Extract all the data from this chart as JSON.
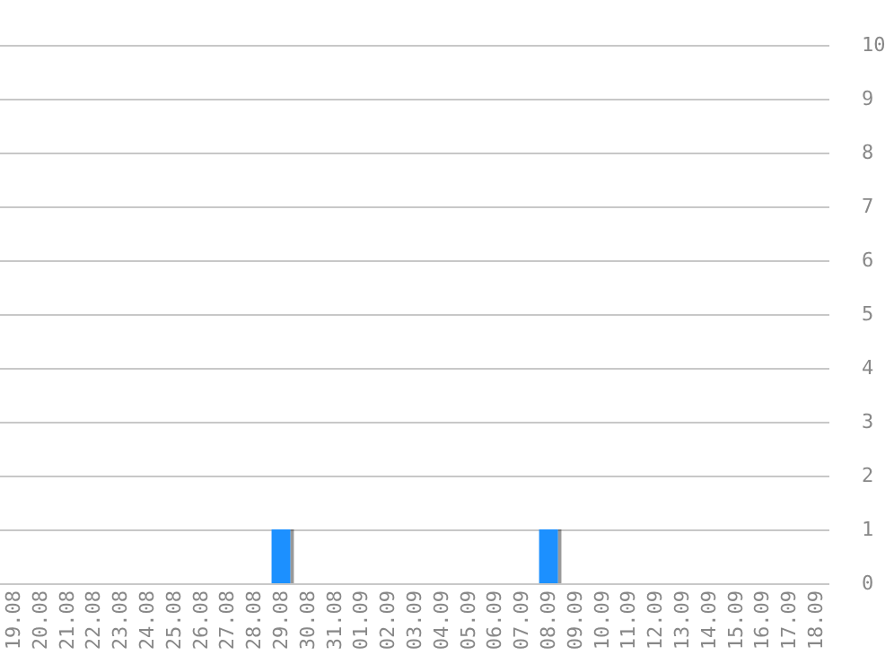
{
  "chart_data": {
    "type": "bar",
    "categories": [
      "19.08",
      "20.08",
      "21.08",
      "22.08",
      "23.08",
      "24.08",
      "25.08",
      "26.08",
      "27.08",
      "28.08",
      "29.08",
      "30.08",
      "31.08",
      "01.09",
      "02.09",
      "03.09",
      "04.09",
      "05.09",
      "06.09",
      "07.09",
      "08.09",
      "09.09",
      "10.09",
      "11.09",
      "12.09",
      "13.09",
      "14.09",
      "15.09",
      "16.09",
      "17.09",
      "18.09"
    ],
    "values": [
      0,
      0,
      0,
      0,
      0,
      0,
      0,
      0,
      0,
      0,
      1,
      0,
      0,
      0,
      0,
      0,
      0,
      0,
      0,
      0,
      1,
      0,
      0,
      0,
      0,
      0,
      0,
      0,
      0,
      0,
      0
    ],
    "color": "#1e90ff",
    "ylim": [
      0,
      10
    ],
    "yticks": [
      0,
      1,
      2,
      3,
      4,
      5,
      6,
      7,
      8,
      9,
      10
    ],
    "grid": "y"
  }
}
